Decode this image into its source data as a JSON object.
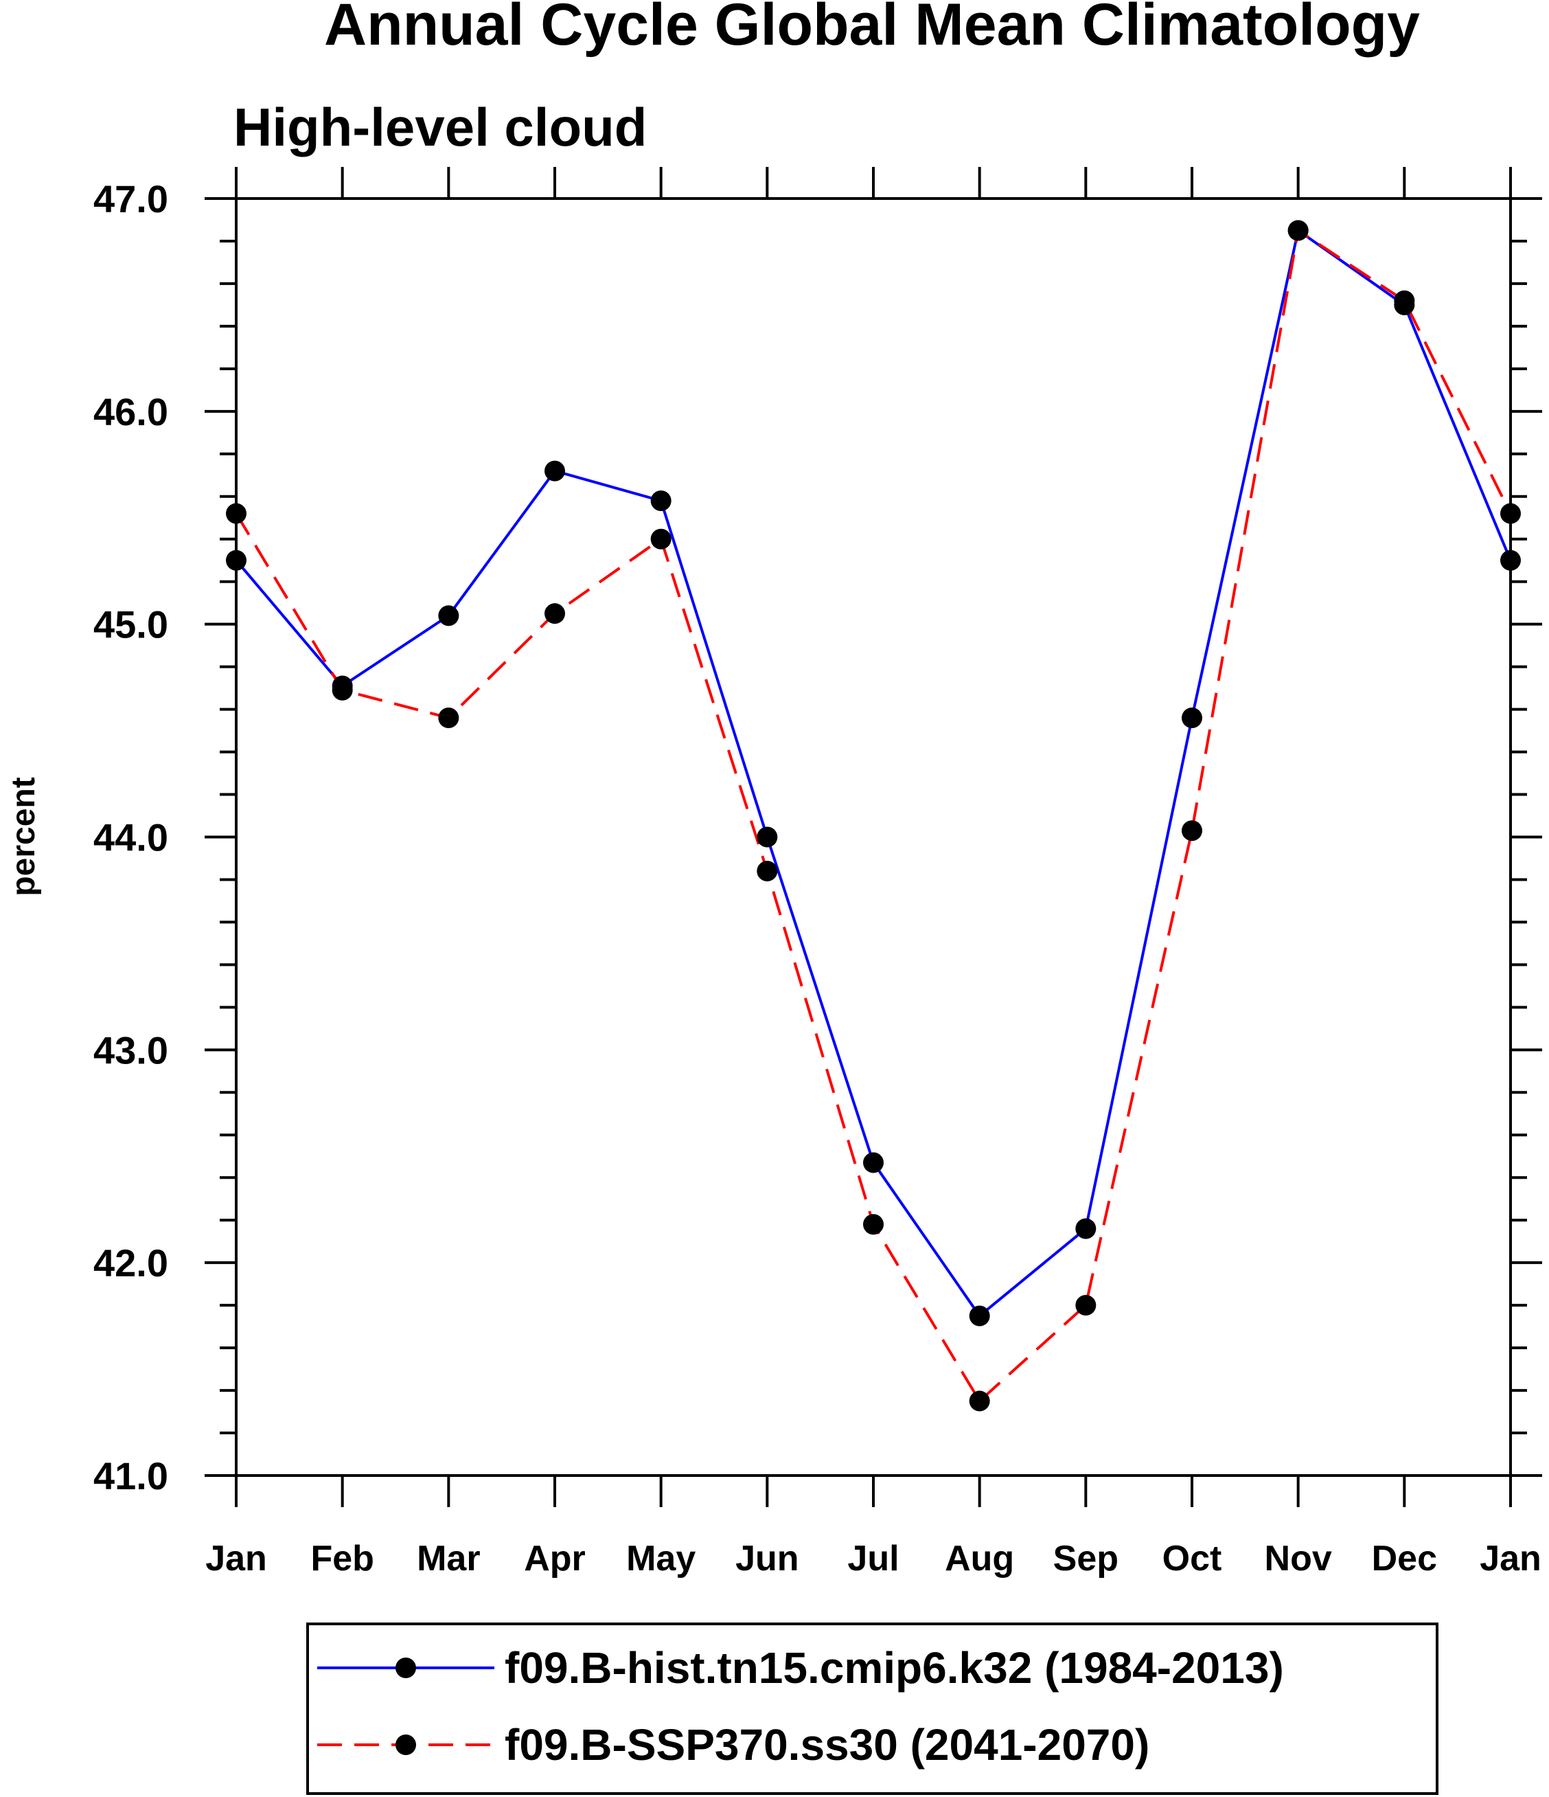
{
  "chart_data": {
    "type": "line",
    "title": "Annual Cycle Global Mean Climatology",
    "subtitle": "High-level cloud",
    "xlabel": "",
    "ylabel": "percent",
    "categories": [
      "Jan",
      "Feb",
      "Mar",
      "Apr",
      "May",
      "Jun",
      "Jul",
      "Aug",
      "Sep",
      "Oct",
      "Nov",
      "Dec",
      "Jan"
    ],
    "ylim": [
      41.0,
      47.0
    ],
    "yticks": [
      41.0,
      42.0,
      43.0,
      44.0,
      45.0,
      46.0,
      47.0
    ],
    "ytick_labels": [
      "41.0",
      "42.0",
      "43.0",
      "44.0",
      "45.0",
      "46.0",
      "47.0"
    ],
    "grid": false,
    "legend_position": "bottom",
    "series": [
      {
        "name": "f09.B-hist.tn15.cmip6.k32 (1984-2013)",
        "color": "#0000ff",
        "dash": "solid",
        "marker": "filled-circle",
        "values": [
          45.3,
          44.71,
          45.04,
          45.72,
          45.58,
          44.0,
          42.47,
          41.75,
          42.16,
          44.56,
          46.85,
          46.5,
          45.3
        ]
      },
      {
        "name": "f09.B-SSP370.ss30 (2041-2070)",
        "color": "#ff0000",
        "dash": "dashed",
        "marker": "filled-circle",
        "values": [
          45.52,
          44.69,
          44.56,
          45.05,
          45.4,
          43.84,
          42.18,
          41.35,
          41.8,
          44.03,
          46.85,
          46.52,
          45.52
        ]
      }
    ]
  }
}
